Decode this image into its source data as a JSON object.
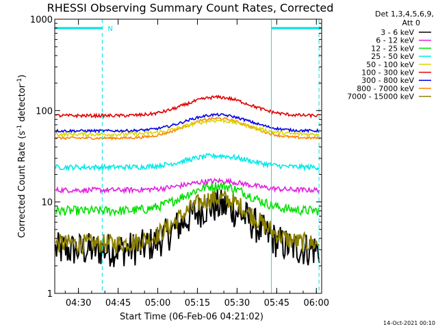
{
  "chart_data": {
    "type": "line",
    "title": "RHESSI Observing Summary Count Rates, Corrected",
    "xlabel": "Start Time (06-Feb-06 04:21:02)",
    "ylabel_main": "Corrected Count Rate (s",
    "ylabel_sup1": "-1",
    "ylabel_mid": " detector",
    "ylabel_sup2": "-1",
    "ylabel_end": ")",
    "y_scale": "log",
    "ylim": [
      1,
      1000
    ],
    "y_ticks": [
      {
        "value": 1,
        "label": "1"
      },
      {
        "value": 10,
        "label": "10"
      },
      {
        "value": 100,
        "label": "100"
      },
      {
        "value": 1000,
        "label": "1000"
      }
    ],
    "xlim_minutes": [
      "04:21:02",
      "06:02:00"
    ],
    "x_ticks": [
      {
        "time": "04:30",
        "label": "04:30"
      },
      {
        "time": "04:45",
        "label": "04:45"
      },
      {
        "time": "05:00",
        "label": "05:00"
      },
      {
        "time": "05:15",
        "label": "05:15"
      },
      {
        "time": "05:30",
        "label": "05:30"
      },
      {
        "time": "05:45",
        "label": "05:45"
      },
      {
        "time": "06:00",
        "label": "06:00"
      }
    ],
    "legend_header": [
      "Det 1,3,4,5,6,9,",
      "Att 0"
    ],
    "legend_position": "right",
    "series": [
      {
        "name": "3 - 6 keV",
        "color": "#000000",
        "base": 3.0,
        "peak": 9,
        "noise": 0.55
      },
      {
        "name": "6 - 12 keV",
        "color": "#e020e0",
        "base": 13.5,
        "peak": 17,
        "noise": 0.08
      },
      {
        "name": "12 - 25 keV",
        "color": "#00e000",
        "base": 8.0,
        "peak": 15,
        "noise": 0.15
      },
      {
        "name": "25 - 50 keV",
        "color": "#00e8e8",
        "base": 24,
        "peak": 32,
        "noise": 0.08
      },
      {
        "name": "50 - 100 keV",
        "color": "#d8d800",
        "base": 55,
        "peak": 78,
        "noise": 0.06
      },
      {
        "name": "100 - 300 keV",
        "color": "#e00000",
        "base": 88,
        "peak": 140,
        "noise": 0.05
      },
      {
        "name": "300 - 800 keV",
        "color": "#0000e0",
        "base": 60,
        "peak": 90,
        "noise": 0.04
      },
      {
        "name": "800 - 7000 keV",
        "color": "#ff8000",
        "base": 50,
        "peak": 82,
        "noise": 0.04
      },
      {
        "name": "7000 - 15000 keV",
        "color": "#8b8000",
        "base": 3.5,
        "peak": 11,
        "noise": 0.3
      }
    ],
    "orbit_markers": {
      "night_segments": [
        [
          "04:21:02",
          "04:39:00"
        ],
        [
          "05:43:00",
          "06:02:00"
        ]
      ],
      "saa_lines": [
        "04:21:02",
        "04:39:00",
        "05:43:00",
        "06:01:00"
      ],
      "flag_label": "N",
      "flag_color": "#00e0e0"
    },
    "footer_date": "14-Oct-2021 00:10"
  }
}
